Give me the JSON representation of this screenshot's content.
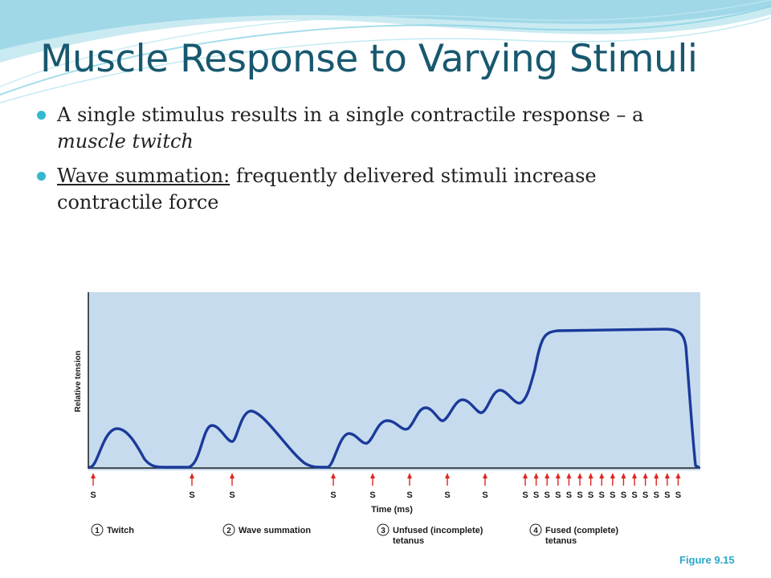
{
  "slide": {
    "title": "Muscle Response to Varying Stimuli",
    "bullets": [
      {
        "pre": "A single stimulus results in a single contractile response – a ",
        "emph": "muscle twitch",
        "post": ""
      },
      {
        "underlined": "Wave summation:",
        "rest": "  frequently delivered stimuli increase contractile force"
      }
    ],
    "caption": "Figure 9.15"
  },
  "figure": {
    "ylabel": "Relative tension",
    "xlabel": "Time (ms)",
    "stimulus_label": "S",
    "colors": {
      "panel": "#c6dcee",
      "trace": "#1b3a9a",
      "arrow": "#e0261f",
      "accent": "#33b8cf",
      "title": "#17586f"
    },
    "legend": [
      {
        "num": "1",
        "text": "Twitch",
        "text2": ""
      },
      {
        "num": "2",
        "text": "Wave summation",
        "text2": ""
      },
      {
        "num": "3",
        "text": "Unfused (incomplete)",
        "text2": "tetanus"
      },
      {
        "num": "4",
        "text": "Fused (complete)",
        "text2": "tetanus"
      }
    ]
  }
}
